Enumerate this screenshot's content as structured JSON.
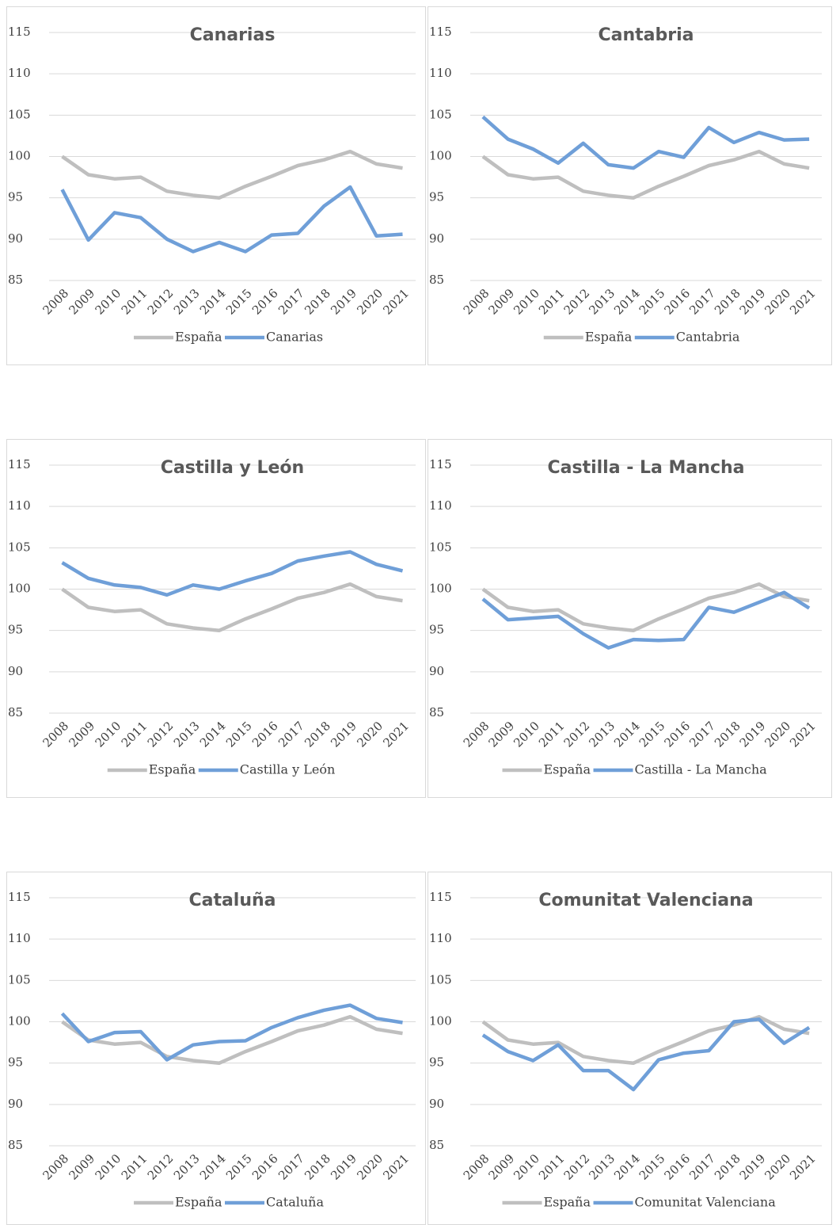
{
  "chart_data": [
    {
      "type": "line",
      "title": "Canarias",
      "categories": [
        "2008",
        "2009",
        "2010",
        "2011",
        "2012",
        "2013",
        "2014",
        "2015",
        "2016",
        "2017",
        "2018",
        "2019",
        "2020",
        "2021"
      ],
      "series": [
        {
          "name": "España",
          "color": "#bfbfbf",
          "values": [
            100,
            97.8,
            97.3,
            97.5,
            95.8,
            95.3,
            95.0,
            96.4,
            97.6,
            98.9,
            99.6,
            100.6,
            99.1,
            98.6
          ]
        },
        {
          "name": "Canarias",
          "color": "#6f9fd8",
          "values": [
            96.0,
            89.9,
            93.2,
            92.6,
            90.0,
            88.5,
            89.6,
            88.5,
            90.5,
            90.7,
            94.0,
            96.3,
            90.4,
            90.6
          ]
        }
      ],
      "ylim": [
        85,
        115
      ],
      "yticks": [
        85,
        90,
        95,
        100,
        105,
        110,
        115
      ],
      "grid": true
    },
    {
      "type": "line",
      "title": "Cantabria",
      "categories": [
        "2008",
        "2009",
        "2010",
        "2011",
        "2012",
        "2013",
        "2014",
        "2015",
        "2016",
        "2017",
        "2018",
        "2019",
        "2020",
        "2021"
      ],
      "series": [
        {
          "name": "España",
          "color": "#bfbfbf",
          "values": [
            100,
            97.8,
            97.3,
            97.5,
            95.8,
            95.3,
            95.0,
            96.4,
            97.6,
            98.9,
            99.6,
            100.6,
            99.1,
            98.6
          ]
        },
        {
          "name": "Cantabria",
          "color": "#6f9fd8",
          "values": [
            104.8,
            102.1,
            100.9,
            99.2,
            101.6,
            99.0,
            98.6,
            100.6,
            99.9,
            103.5,
            101.7,
            102.9,
            102.0,
            102.1
          ]
        }
      ],
      "ylim": [
        85,
        115
      ],
      "yticks": [
        85,
        90,
        95,
        100,
        105,
        110,
        115
      ],
      "grid": true
    },
    {
      "type": "line",
      "title": "Castilla y León",
      "categories": [
        "2008",
        "2009",
        "2010",
        "2011",
        "2012",
        "2013",
        "2014",
        "2015",
        "2016",
        "2017",
        "2018",
        "2019",
        "2020",
        "2021"
      ],
      "series": [
        {
          "name": "España",
          "color": "#bfbfbf",
          "values": [
            100,
            97.8,
            97.3,
            97.5,
            95.8,
            95.3,
            95.0,
            96.4,
            97.6,
            98.9,
            99.6,
            100.6,
            99.1,
            98.6
          ]
        },
        {
          "name": "Castilla y León",
          "color": "#6f9fd8",
          "values": [
            103.2,
            101.3,
            100.5,
            100.2,
            99.3,
            100.5,
            100.0,
            101.0,
            101.9,
            103.4,
            104.0,
            104.5,
            103.0,
            102.2
          ]
        }
      ],
      "ylim": [
        85,
        115
      ],
      "yticks": [
        85,
        90,
        95,
        100,
        105,
        110,
        115
      ],
      "grid": true
    },
    {
      "type": "line",
      "title": "Castilla - La Mancha",
      "categories": [
        "2008",
        "2009",
        "2010",
        "2011",
        "2012",
        "2013",
        "2014",
        "2015",
        "2016",
        "2017",
        "2018",
        "2019",
        "2020",
        "2021"
      ],
      "series": [
        {
          "name": "España",
          "color": "#bfbfbf",
          "values": [
            100,
            97.8,
            97.3,
            97.5,
            95.8,
            95.3,
            95.0,
            96.4,
            97.6,
            98.9,
            99.6,
            100.6,
            99.1,
            98.6
          ]
        },
        {
          "name": "Castilla - La Mancha",
          "color": "#6f9fd8",
          "values": [
            98.8,
            96.3,
            96.5,
            96.7,
            94.6,
            92.9,
            93.9,
            93.8,
            93.9,
            97.8,
            97.2,
            98.4,
            99.6,
            97.7
          ]
        }
      ],
      "ylim": [
        85,
        115
      ],
      "yticks": [
        85,
        90,
        95,
        100,
        105,
        110,
        115
      ],
      "grid": true
    },
    {
      "type": "line",
      "title": "Cataluña",
      "categories": [
        "2008",
        "2009",
        "2010",
        "2011",
        "2012",
        "2013",
        "2014",
        "2015",
        "2016",
        "2017",
        "2018",
        "2019",
        "2020",
        "2021"
      ],
      "series": [
        {
          "name": "España",
          "color": "#bfbfbf",
          "values": [
            100,
            97.8,
            97.3,
            97.5,
            95.8,
            95.3,
            95.0,
            96.4,
            97.6,
            98.9,
            99.6,
            100.6,
            99.1,
            98.6
          ]
        },
        {
          "name": "Cataluña",
          "color": "#6f9fd8",
          "values": [
            101.0,
            97.6,
            98.7,
            98.8,
            95.4,
            97.2,
            97.6,
            97.7,
            99.3,
            100.5,
            101.4,
            102.0,
            100.4,
            99.9
          ]
        }
      ],
      "ylim": [
        85,
        115
      ],
      "yticks": [
        85,
        90,
        95,
        100,
        105,
        110,
        115
      ],
      "grid": true
    },
    {
      "type": "line",
      "title": "Comunitat Valenciana",
      "categories": [
        "2008",
        "2009",
        "2010",
        "2011",
        "2012",
        "2013",
        "2014",
        "2015",
        "2016",
        "2017",
        "2018",
        "2019",
        "2020",
        "2021"
      ],
      "series": [
        {
          "name": "España",
          "color": "#bfbfbf",
          "values": [
            100,
            97.8,
            97.3,
            97.5,
            95.8,
            95.3,
            95.0,
            96.4,
            97.6,
            98.9,
            99.6,
            100.6,
            99.1,
            98.6
          ]
        },
        {
          "name": "Comunitat Valenciana",
          "color": "#6f9fd8",
          "values": [
            98.4,
            96.4,
            95.3,
            97.2,
            94.1,
            94.1,
            91.8,
            95.4,
            96.2,
            96.5,
            100.0,
            100.3,
            97.4,
            99.3
          ]
        }
      ],
      "ylim": [
        85,
        115
      ],
      "yticks": [
        85,
        90,
        95,
        100,
        105,
        110,
        115
      ],
      "grid": true
    }
  ]
}
